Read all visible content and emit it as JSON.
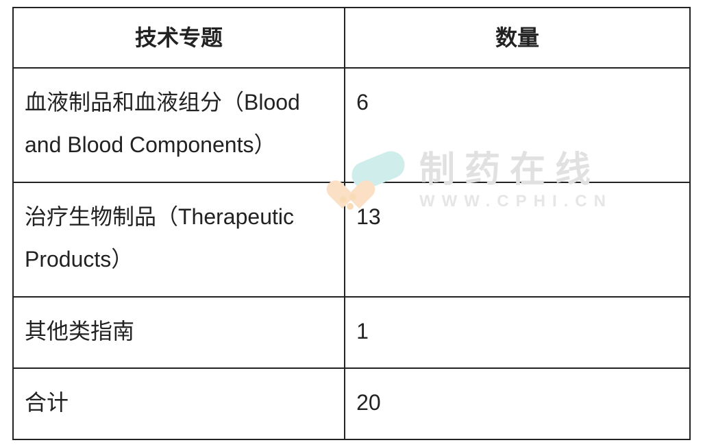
{
  "table": {
    "columns": [
      "技术专题",
      "数量"
    ],
    "rows": [
      {
        "topic": "血液制品和血液组分（Blood and Blood Components）",
        "count": "6"
      },
      {
        "topic": "治疗生物制品（Therapeutic Products）",
        "count": "13"
      },
      {
        "topic": "其他类指南",
        "count": "1"
      },
      {
        "topic": "合计",
        "count": "20"
      }
    ],
    "border_color": "#222222",
    "text_color": "#222222",
    "header_fontsize": 32,
    "cell_fontsize": 32,
    "col_widths_pct": [
      49,
      51
    ],
    "background_color": "#ffffff"
  },
  "watermark": {
    "brand_text": "制药在线",
    "url_text": "WWW.CPHI.CN",
    "text_color": "#e1e1e1",
    "icon_colors": {
      "capsule": "#cfeeeb",
      "heart": "#fbe0c5",
      "dots": "#f8dcb8"
    }
  }
}
